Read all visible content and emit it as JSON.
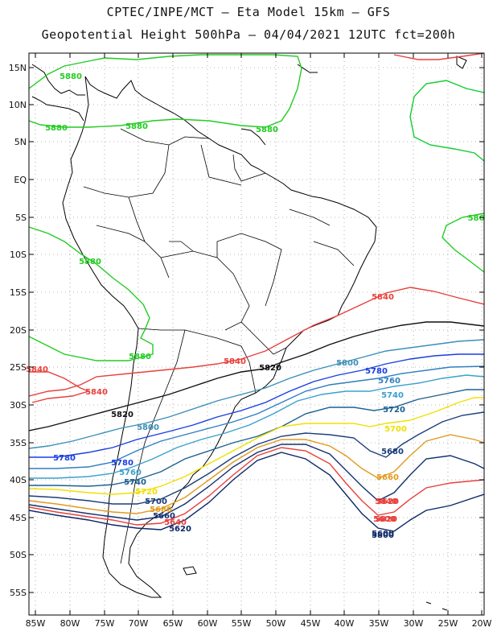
{
  "header": {
    "line1": "CPTEC/INPE/MCT –  Eta Model 15km – GFS",
    "line2": "Geopotential Height 500hPa – 04/04/2021 12UTC fct=200h"
  },
  "axes": {
    "lat_labels": [
      "15N",
      "10N",
      "5N",
      "EQ",
      "5S",
      "10S",
      "15S",
      "20S",
      "25S",
      "30S",
      "35S",
      "40S",
      "45S",
      "50S",
      "55S"
    ],
    "lon_labels": [
      "85W",
      "80W",
      "75W",
      "70W",
      "65W",
      "60W",
      "55W",
      "50W",
      "45W",
      "40W",
      "35W",
      "30W",
      "25W",
      "20W"
    ]
  },
  "colors": {
    "c5880": "#22cc22",
    "c5860": "#11cc33",
    "c5840": "#e8403c",
    "c5820": "#111111",
    "c5800": "#3b8fb8",
    "c5780": "#1a3fe0",
    "c5760": "#2f7fc0",
    "c5740": "#3aa0cc",
    "c5720": "#1c6090",
    "c5700": "#f0e000",
    "c5680": "#1a3e7a",
    "c5660": "#e09a20",
    "c5640": "#13306e",
    "c5620": "#e8403c",
    "c5600": "#0c2766",
    "coast": "#000000",
    "grid": "#777777"
  },
  "contour_labels": [
    {
      "text": "5880"
    },
    {
      "text": "5880"
    },
    {
      "text": "5880"
    },
    {
      "text": "5880"
    },
    {
      "text": "5880"
    },
    {
      "text": "5880"
    },
    {
      "text": "586"
    },
    {
      "text": "5840"
    },
    {
      "text": "5840"
    },
    {
      "text": "5840"
    },
    {
      "text": "5840"
    },
    {
      "text": "5840"
    },
    {
      "text": "5820"
    },
    {
      "text": "5820"
    },
    {
      "text": "5820"
    },
    {
      "text": "5800"
    },
    {
      "text": "5800"
    },
    {
      "text": "5800"
    },
    {
      "text": "5780"
    },
    {
      "text": "5780"
    },
    {
      "text": "5780"
    },
    {
      "text": "5760"
    },
    {
      "text": "5760"
    },
    {
      "text": "5740"
    },
    {
      "text": "5740"
    },
    {
      "text": "5720"
    },
    {
      "text": "5720"
    },
    {
      "text": "5700"
    },
    {
      "text": "5700"
    },
    {
      "text": "5680"
    },
    {
      "text": "5680"
    },
    {
      "text": "5660"
    },
    {
      "text": "5660"
    },
    {
      "text": "5640"
    },
    {
      "text": "5620"
    },
    {
      "text": "5620"
    },
    {
      "text": "5600"
    },
    {
      "text": "5600"
    }
  ]
}
